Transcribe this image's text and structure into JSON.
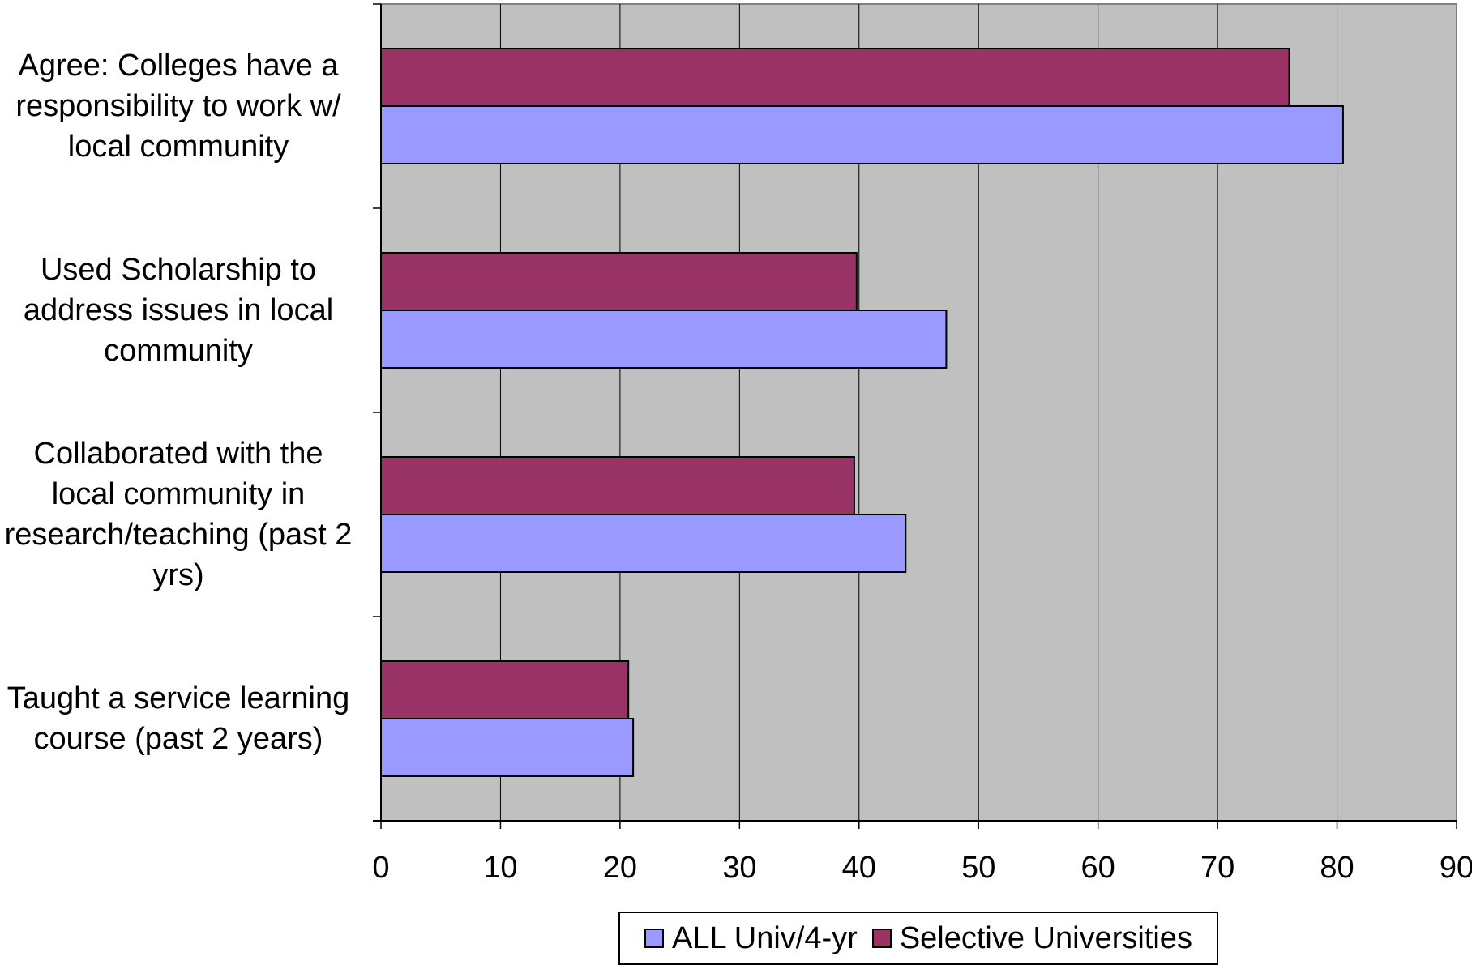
{
  "chart_data": {
    "type": "bar",
    "orientation": "horizontal",
    "categories": [
      "Agree: Colleges have a responsibility to work w/ local community",
      "Used Scholarship to address issues in local community",
      "Collaborated with the local community in research/teaching (past 2 yrs)",
      "Taught a service learning course (past 2 years)"
    ],
    "series": [
      {
        "name": "Selective Universities",
        "color": "#993366",
        "values": [
          76,
          39.8,
          39.6,
          20.7
        ]
      },
      {
        "name": "ALL Univ/4-yr",
        "color": "#9999ff",
        "values": [
          80.5,
          47.3,
          43.9,
          21.1
        ]
      }
    ],
    "xlim": [
      0,
      90
    ],
    "xticks": [
      "0",
      "10",
      "20",
      "30",
      "40",
      "50",
      "60",
      "70",
      "80",
      "90"
    ],
    "grid": true,
    "plot_background": "#c0c0c0",
    "legend": {
      "placement": "bottom",
      "entries": [
        "ALL Univ/4-yr",
        "Selective Universities"
      ]
    }
  }
}
